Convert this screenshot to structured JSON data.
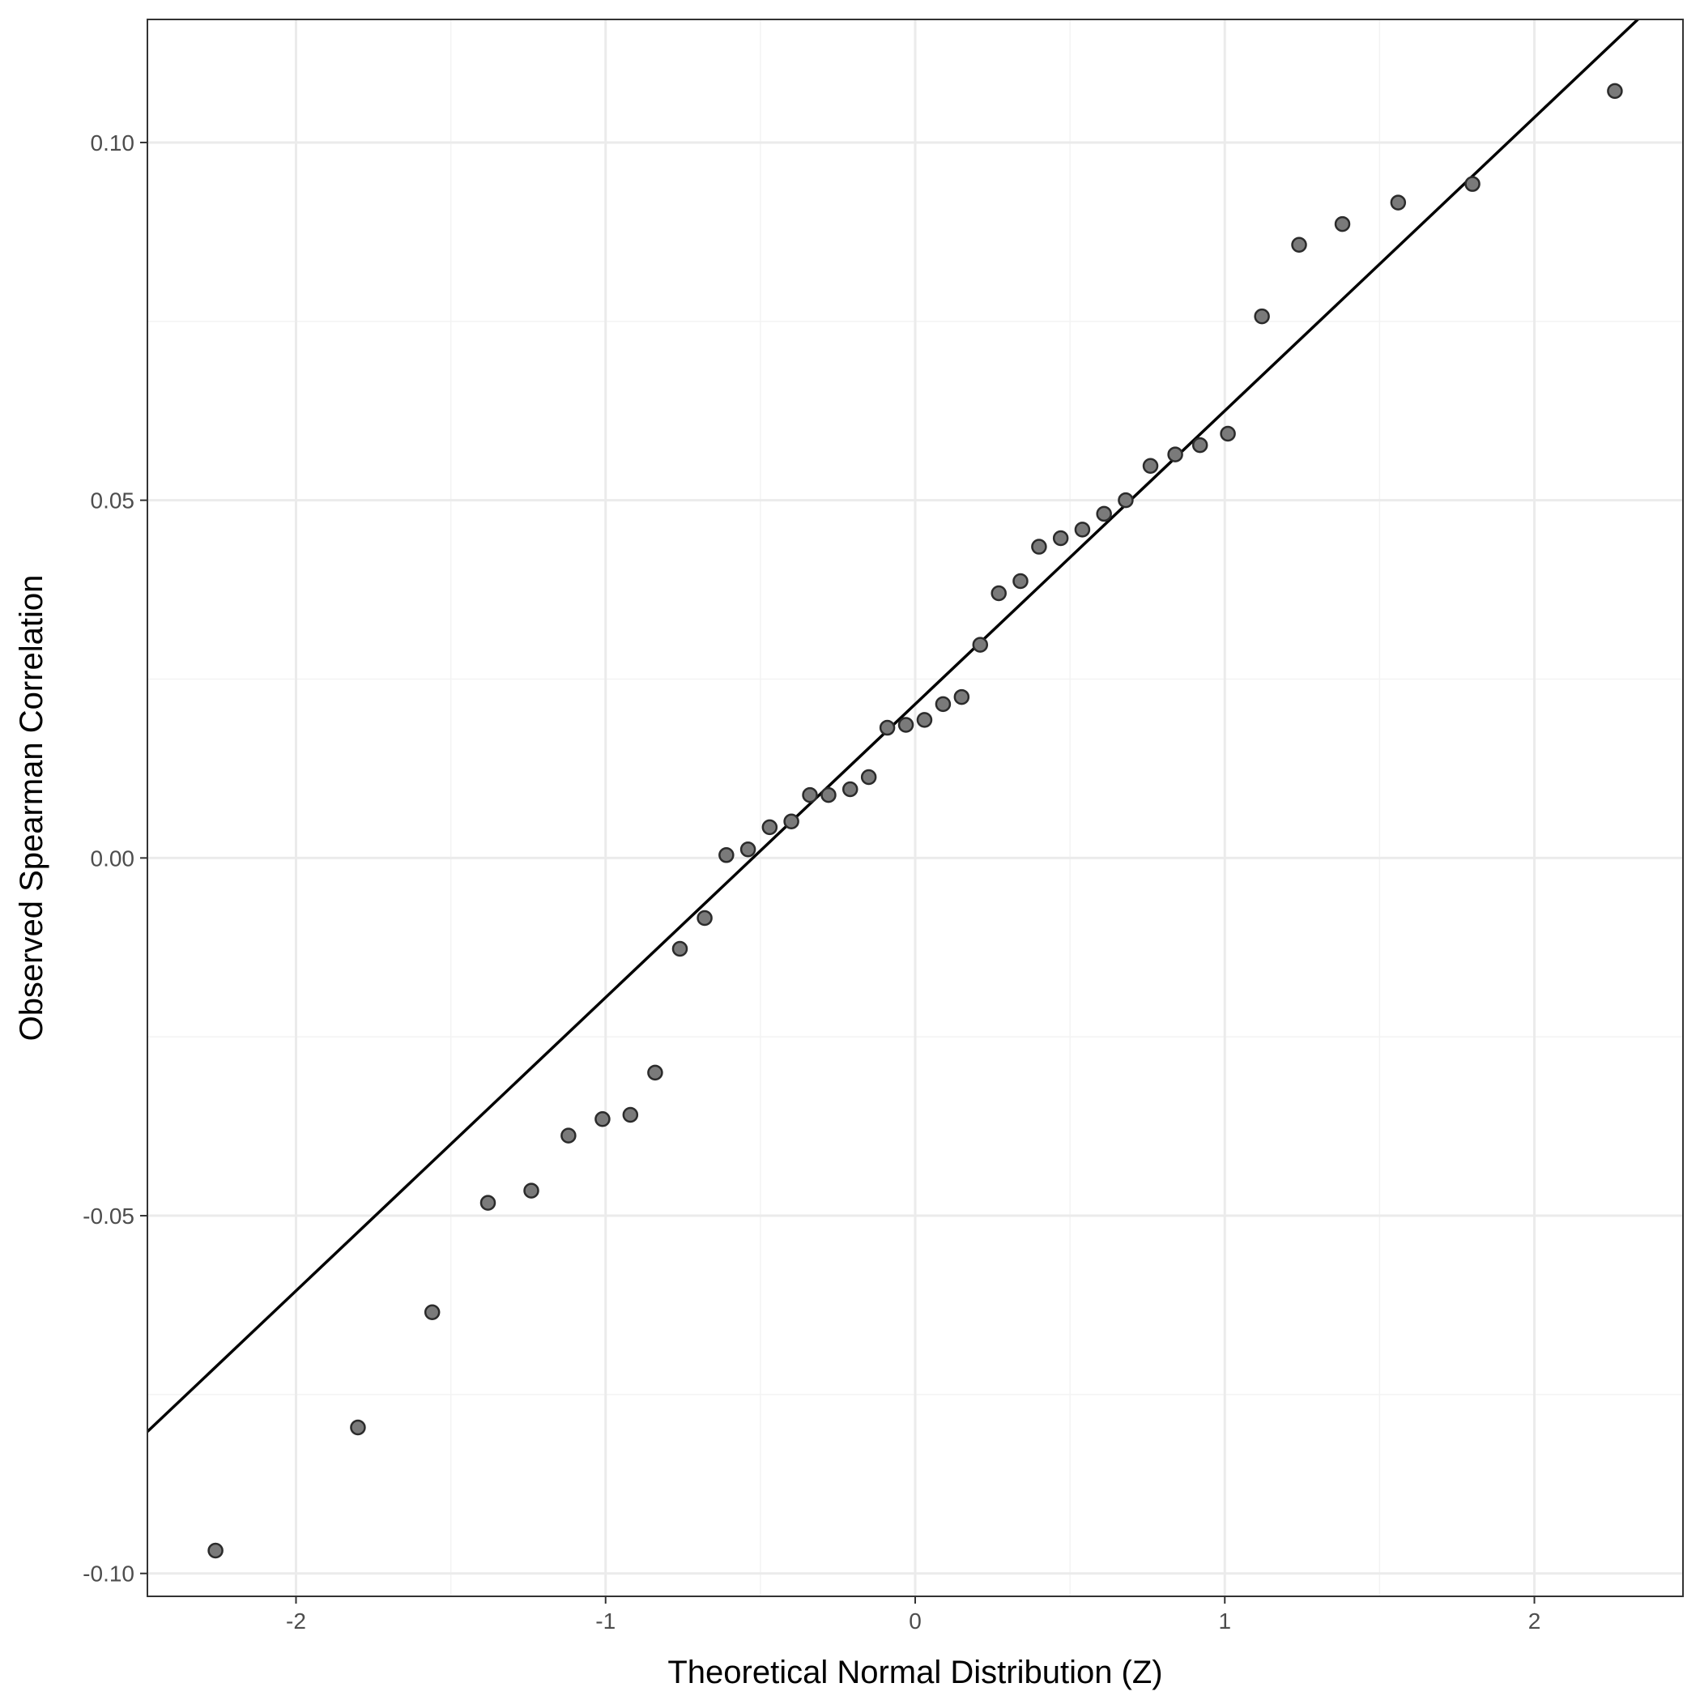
{
  "chart_data": {
    "type": "scatter",
    "title": "",
    "xlabel": "Theoretical Normal Distribution (Z)",
    "ylabel": "Observed Spearman Correlation",
    "xlim": [
      -2.48,
      2.48
    ],
    "ylim": [
      -0.1032,
      0.1172
    ],
    "x_ticks": [
      -2,
      -1,
      0,
      1,
      2
    ],
    "x_tick_labels": [
      "-2",
      "-1",
      "0",
      "1",
      "2"
    ],
    "y_ticks": [
      -0.1,
      -0.05,
      0.0,
      0.05,
      0.1
    ],
    "y_tick_labels": [
      "-0.10",
      "-0.05",
      "0.00",
      "0.05",
      "0.10"
    ],
    "grid": true,
    "legend": "none",
    "colors": {
      "point_fill": "#7a7a7a",
      "point_stroke": "#2b2b2b",
      "line": "#000000"
    },
    "reference_line": {
      "intercept": 0.0215,
      "slope": 0.041
    },
    "points": [
      [
        -2.26,
        -0.0968
      ],
      [
        -1.8,
        -0.0796
      ],
      [
        -1.56,
        -0.0635
      ],
      [
        -1.38,
        -0.0482
      ],
      [
        -1.24,
        -0.0465
      ],
      [
        -1.12,
        -0.0388
      ],
      [
        -1.01,
        -0.0365
      ],
      [
        -0.92,
        -0.0359
      ],
      [
        -0.84,
        -0.03
      ],
      [
        -0.76,
        -0.0127
      ],
      [
        -0.68,
        -0.0084
      ],
      [
        -0.61,
        0.0004
      ],
      [
        -0.54,
        0.0012
      ],
      [
        -0.47,
        0.0043
      ],
      [
        -0.4,
        0.0051
      ],
      [
        -0.34,
        0.0088
      ],
      [
        -0.28,
        0.0088
      ],
      [
        -0.21,
        0.0096
      ],
      [
        -0.15,
        0.0113
      ],
      [
        -0.09,
        0.0182
      ],
      [
        -0.03,
        0.0186
      ],
      [
        0.03,
        0.0193
      ],
      [
        0.09,
        0.0215
      ],
      [
        0.15,
        0.0225
      ],
      [
        0.21,
        0.0298
      ],
      [
        0.27,
        0.037
      ],
      [
        0.34,
        0.0387
      ],
      [
        0.4,
        0.0435
      ],
      [
        0.47,
        0.0447
      ],
      [
        0.54,
        0.0459
      ],
      [
        0.61,
        0.0481
      ],
      [
        0.68,
        0.05
      ],
      [
        0.76,
        0.0548
      ],
      [
        0.84,
        0.0564
      ],
      [
        0.92,
        0.0577
      ],
      [
        1.01,
        0.0593
      ],
      [
        1.12,
        0.0757
      ],
      [
        1.24,
        0.0857
      ],
      [
        1.38,
        0.0886
      ],
      [
        1.56,
        0.0916
      ],
      [
        1.8,
        0.0942
      ],
      [
        2.26,
        0.1072
      ]
    ]
  }
}
